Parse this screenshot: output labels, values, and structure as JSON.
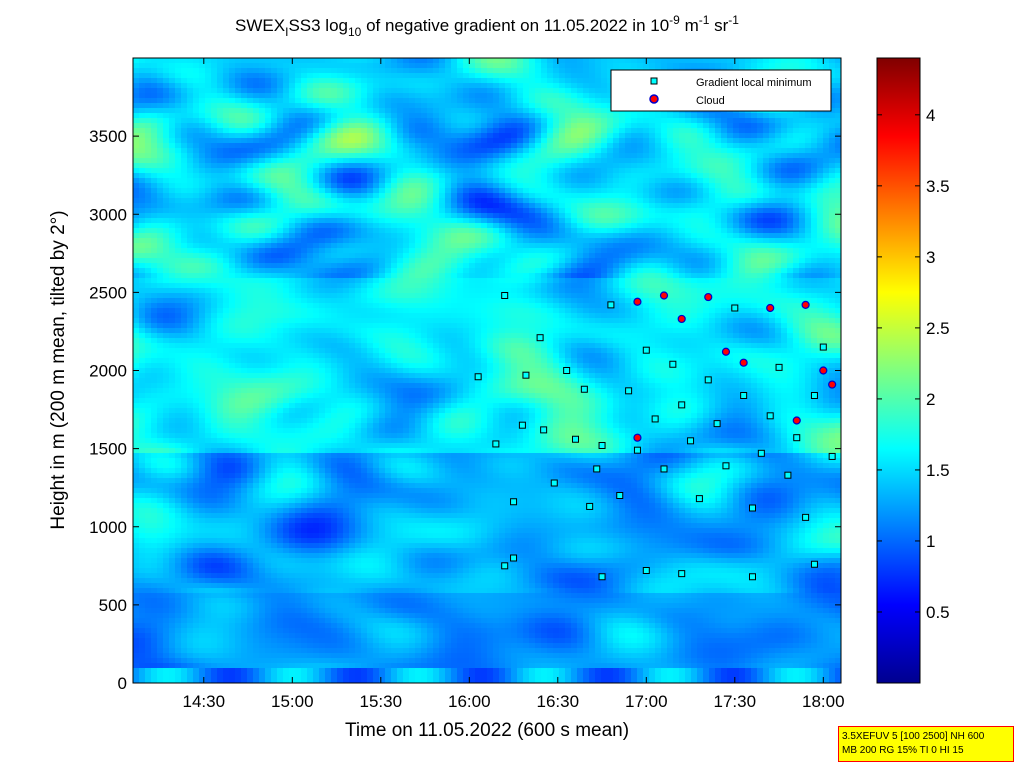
{
  "chart_data": {
    "type": "heatmap",
    "title": {
      "prefix": "SWEX",
      "prefix_sub": "I",
      "middle": "SS3 log",
      "log_sub": "10",
      "rest": " of negative gradient on 11.05.2022 in 10",
      "exp1": "-9",
      "unit1": " m",
      "exp2": "-1",
      "unit2": " sr",
      "exp3": "-1"
    },
    "xlabel": "Time on 11.05.2022 (600 s mean)",
    "ylabel": "Height in m (200 m mean, tilted by 2°)",
    "x_range_hours": [
      14.1,
      18.1
    ],
    "x_ticks": [
      {
        "label": "14:30",
        "hour": 14.5
      },
      {
        "label": "15:00",
        "hour": 15.0
      },
      {
        "label": "15:30",
        "hour": 15.5
      },
      {
        "label": "16:00",
        "hour": 16.0
      },
      {
        "label": "16:30",
        "hour": 16.5
      },
      {
        "label": "17:00",
        "hour": 17.0
      },
      {
        "label": "17:30",
        "hour": 17.5
      },
      {
        "label": "18:00",
        "hour": 18.0
      }
    ],
    "ylim": [
      0,
      4000
    ],
    "y_ticks": [
      "0",
      "500",
      "1000",
      "1500",
      "2000",
      "2500",
      "3000",
      "3500"
    ],
    "colorbar": {
      "range": [
        0,
        4.4
      ],
      "ticks": [
        "0.5",
        "1",
        "1.5",
        "2",
        "2.5",
        "3",
        "3.5",
        "4"
      ],
      "colormap": "jet"
    },
    "legend": {
      "placement": "top-right",
      "entries": [
        {
          "label": "Gradient local minimum",
          "marker": "square",
          "color": "#00ffff"
        },
        {
          "label": "Cloud",
          "marker": "circle",
          "color": "#ff0000"
        }
      ]
    },
    "gradient_minima_hour_height": [
      [
        16.05,
        1960
      ],
      [
        16.15,
        1530
      ],
      [
        16.2,
        2480
      ],
      [
        16.25,
        1160
      ],
      [
        16.3,
        1650
      ],
      [
        16.32,
        1970
      ],
      [
        16.4,
        2210
      ],
      [
        16.42,
        1620
      ],
      [
        16.48,
        1280
      ],
      [
        16.55,
        2000
      ],
      [
        16.6,
        1560
      ],
      [
        16.65,
        1880
      ],
      [
        16.68,
        1130
      ],
      [
        16.72,
        1370
      ],
      [
        16.75,
        1520
      ],
      [
        16.8,
        2420
      ],
      [
        16.85,
        1200
      ],
      [
        16.9,
        1870
      ],
      [
        16.95,
        1490
      ],
      [
        17.0,
        2130
      ],
      [
        17.05,
        1690
      ],
      [
        17.1,
        1370
      ],
      [
        17.15,
        2040
      ],
      [
        17.2,
        1780
      ],
      [
        17.25,
        1550
      ],
      [
        17.3,
        1180
      ],
      [
        17.35,
        1940
      ],
      [
        17.4,
        1660
      ],
      [
        17.45,
        1390
      ],
      [
        17.5,
        2400
      ],
      [
        17.55,
        1840
      ],
      [
        17.6,
        1120
      ],
      [
        17.65,
        1470
      ],
      [
        17.7,
        1710
      ],
      [
        17.75,
        2020
      ],
      [
        17.8,
        1330
      ],
      [
        17.85,
        1570
      ],
      [
        17.9,
        1060
      ],
      [
        17.95,
        1840
      ],
      [
        18.0,
        2150
      ],
      [
        18.05,
        1450
      ],
      [
        16.2,
        750
      ],
      [
        16.25,
        800
      ],
      [
        16.75,
        680
      ],
      [
        17.0,
        720
      ],
      [
        17.2,
        700
      ],
      [
        17.6,
        680
      ],
      [
        17.95,
        760
      ]
    ],
    "cloud_hour_height": [
      [
        16.95,
        2440
      ],
      [
        17.1,
        2480
      ],
      [
        17.35,
        2470
      ],
      [
        17.45,
        2120
      ],
      [
        17.55,
        2050
      ],
      [
        17.7,
        2400
      ],
      [
        17.9,
        2420
      ],
      [
        18.0,
        2000
      ],
      [
        18.05,
        1910
      ],
      [
        16.95,
        1570
      ],
      [
        17.85,
        1680
      ],
      [
        17.2,
        2330
      ]
    ]
  },
  "param_box": {
    "line1": "3.5XEFUV 5 [100 2500] NH 600",
    "line2": "MB 200 RG 15% TI 0 HI 15"
  }
}
